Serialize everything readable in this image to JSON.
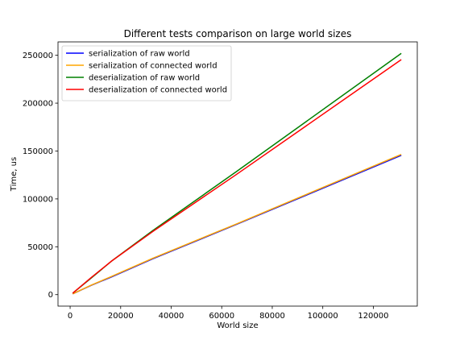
{
  "chart_data": {
    "type": "line",
    "title": "Different tests comparison on large world sizes",
    "xlabel": "World size",
    "ylabel": "Time, us",
    "xlim": [
      -4800,
      137400
    ],
    "ylim": [
      -12000,
      264000
    ],
    "xticks": [
      0,
      20000,
      40000,
      60000,
      80000,
      100000,
      120000
    ],
    "yticks": [
      0,
      50000,
      100000,
      150000,
      200000,
      250000
    ],
    "grid": false,
    "legend_position": "top-left",
    "x": [
      1024,
      8192,
      16384,
      32768,
      65536,
      131072
    ],
    "series": [
      {
        "name": "serialization of raw world",
        "color": "#0000ff",
        "values": [
          800,
          9500,
          18500,
          37500,
          73000,
          145500
        ]
      },
      {
        "name": "serialization of connected world",
        "color": "#ffa500",
        "values": [
          800,
          9700,
          19000,
          38000,
          73500,
          146500
        ]
      },
      {
        "name": "deserialization of raw world",
        "color": "#008000",
        "values": [
          1500,
          17000,
          35000,
          67000,
          128000,
          252000
        ]
      },
      {
        "name": "deserialization of connected world",
        "color": "#ff0000",
        "values": [
          1500,
          17500,
          35000,
          66000,
          125000,
          245500
        ]
      }
    ]
  }
}
